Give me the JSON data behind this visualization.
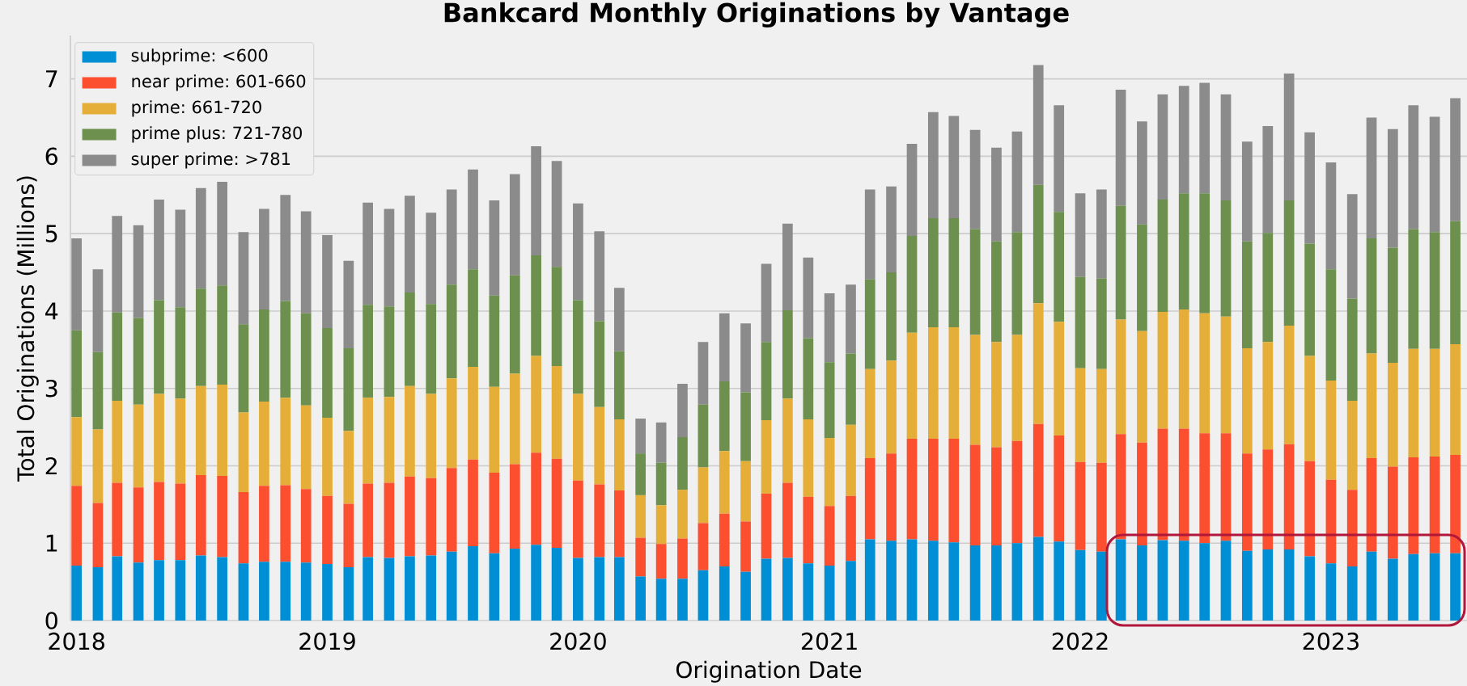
{
  "chart_data": {
    "type": "bar",
    "title": "Bankcard Monthly Originations by Vantage",
    "xlabel": "Origination Date",
    "ylabel": "Total Originations (Millions)",
    "stacked": true,
    "grid": "y",
    "legend": "top left",
    "x": [
      "2018-01",
      "2018-02",
      "2018-03",
      "2018-04",
      "2018-05",
      "2018-06",
      "2018-07",
      "2018-08",
      "2018-09",
      "2018-10",
      "2018-11",
      "2018-12",
      "2019-01",
      "2019-02",
      "2019-03",
      "2019-04",
      "2019-05",
      "2019-06",
      "2019-07",
      "2019-08",
      "2019-09",
      "2019-10",
      "2019-11",
      "2019-12",
      "2020-01",
      "2020-02",
      "2020-03",
      "2020-04",
      "2020-05",
      "2020-06",
      "2020-07",
      "2020-08",
      "2020-09",
      "2020-10",
      "2020-11",
      "2020-12",
      "2021-01",
      "2021-02",
      "2021-03",
      "2021-04",
      "2021-05",
      "2021-06",
      "2021-07",
      "2021-08",
      "2021-09",
      "2021-10",
      "2021-11",
      "2021-12",
      "2022-01",
      "2022-02",
      "2022-03",
      "2022-04",
      "2022-05",
      "2022-06",
      "2022-07",
      "2022-08",
      "2022-09",
      "2022-10",
      "2022-11",
      "2022-12",
      "2023-01",
      "2023-02",
      "2023-03",
      "2023-04",
      "2023-05",
      "2023-06",
      "2023-07"
    ],
    "series": [
      {
        "name": "subprime: <600",
        "color": "#008fd5",
        "values": [
          0.71,
          0.69,
          0.83,
          0.75,
          0.78,
          0.78,
          0.84,
          0.82,
          0.74,
          0.76,
          0.76,
          0.75,
          0.73,
          0.69,
          0.82,
          0.81,
          0.83,
          0.84,
          0.89,
          0.96,
          0.87,
          0.93,
          0.98,
          0.94,
          0.81,
          0.82,
          0.82,
          0.57,
          0.54,
          0.54,
          0.65,
          0.7,
          0.63,
          0.8,
          0.81,
          0.74,
          0.71,
          0.77,
          1.05,
          1.03,
          1.05,
          1.03,
          1.01,
          0.97,
          0.97,
          1.0,
          1.08,
          1.02,
          0.91,
          0.89,
          1.05,
          0.97,
          1.04,
          1.03,
          1.0,
          1.03,
          0.9,
          0.92,
          0.92,
          0.83,
          0.74,
          0.7,
          0.89,
          0.8,
          0.86,
          0.87,
          0.87
        ]
      },
      {
        "name": "near prime: 601-660",
        "color": "#fc4f30",
        "values": [
          1.03,
          0.83,
          0.95,
          0.97,
          1.01,
          0.99,
          1.04,
          1.05,
          0.92,
          0.98,
          0.99,
          0.95,
          0.88,
          0.82,
          0.95,
          0.97,
          1.03,
          1.0,
          1.08,
          1.12,
          1.04,
          1.09,
          1.19,
          1.15,
          1.0,
          0.94,
          0.86,
          0.5,
          0.45,
          0.52,
          0.61,
          0.68,
          0.65,
          0.84,
          0.97,
          0.86,
          0.77,
          0.84,
          1.05,
          1.13,
          1.3,
          1.32,
          1.34,
          1.3,
          1.27,
          1.32,
          1.46,
          1.37,
          1.14,
          1.15,
          1.36,
          1.33,
          1.44,
          1.45,
          1.42,
          1.39,
          1.26,
          1.29,
          1.36,
          1.23,
          1.08,
          0.99,
          1.21,
          1.19,
          1.25,
          1.25,
          1.27
        ]
      },
      {
        "name": "prime: 661-720",
        "color": "#e5ae38",
        "values": [
          0.89,
          0.95,
          1.06,
          1.07,
          1.14,
          1.1,
          1.15,
          1.18,
          1.03,
          1.09,
          1.13,
          1.08,
          1.01,
          0.94,
          1.11,
          1.11,
          1.17,
          1.09,
          1.16,
          1.2,
          1.11,
          1.17,
          1.25,
          1.2,
          1.12,
          1.0,
          0.92,
          0.55,
          0.5,
          0.63,
          0.72,
          0.81,
          0.78,
          0.95,
          1.09,
          1.0,
          0.88,
          0.92,
          1.15,
          1.2,
          1.37,
          1.44,
          1.44,
          1.42,
          1.36,
          1.37,
          1.56,
          1.47,
          1.21,
          1.21,
          1.48,
          1.44,
          1.51,
          1.54,
          1.55,
          1.51,
          1.36,
          1.39,
          1.53,
          1.36,
          1.28,
          1.15,
          1.35,
          1.34,
          1.4,
          1.39,
          1.43
        ]
      },
      {
        "name": "prime plus: 721-780",
        "color": "#6d904f",
        "values": [
          1.12,
          1.0,
          1.14,
          1.12,
          1.21,
          1.18,
          1.26,
          1.28,
          1.14,
          1.19,
          1.25,
          1.19,
          1.16,
          1.07,
          1.2,
          1.17,
          1.21,
          1.16,
          1.21,
          1.26,
          1.18,
          1.27,
          1.3,
          1.28,
          1.21,
          1.11,
          0.88,
          0.54,
          0.55,
          0.68,
          0.81,
          0.9,
          0.89,
          1.01,
          1.14,
          1.05,
          0.98,
          0.92,
          1.16,
          1.14,
          1.25,
          1.41,
          1.41,
          1.37,
          1.3,
          1.33,
          1.53,
          1.42,
          1.18,
          1.17,
          1.47,
          1.38,
          1.45,
          1.5,
          1.55,
          1.5,
          1.38,
          1.41,
          1.62,
          1.45,
          1.44,
          1.32,
          1.49,
          1.49,
          1.55,
          1.51,
          1.59
        ]
      },
      {
        "name": "super prime: >781",
        "color": "#8b8b8b",
        "values": [
          1.19,
          1.07,
          1.25,
          1.2,
          1.3,
          1.26,
          1.3,
          1.34,
          1.19,
          1.3,
          1.37,
          1.32,
          1.2,
          1.13,
          1.32,
          1.26,
          1.25,
          1.18,
          1.23,
          1.29,
          1.23,
          1.31,
          1.41,
          1.37,
          1.25,
          1.16,
          0.82,
          0.45,
          0.52,
          0.69,
          0.81,
          0.88,
          0.89,
          1.01,
          1.12,
          1.04,
          0.89,
          0.89,
          1.16,
          1.11,
          1.19,
          1.37,
          1.32,
          1.28,
          1.21,
          1.3,
          1.55,
          1.38,
          1.08,
          1.15,
          1.5,
          1.33,
          1.36,
          1.39,
          1.43,
          1.37,
          1.29,
          1.38,
          1.64,
          1.44,
          1.38,
          1.35,
          1.56,
          1.53,
          1.6,
          1.49,
          1.59
        ]
      }
    ],
    "xlim": [
      "2017-12-23",
      "2023-07-18"
    ],
    "ylim": [
      0,
      7.56
    ],
    "xticks": [
      {
        "value": "2018-01",
        "label": "2018"
      },
      {
        "value": "2019-01",
        "label": "2019"
      },
      {
        "value": "2020-01",
        "label": "2020"
      },
      {
        "value": "2021-01",
        "label": "2021"
      },
      {
        "value": "2022-01",
        "label": "2022"
      },
      {
        "value": "2023-01",
        "label": "2023"
      }
    ],
    "yticks": [
      0,
      1,
      2,
      3,
      4,
      5,
      6,
      7
    ]
  }
}
